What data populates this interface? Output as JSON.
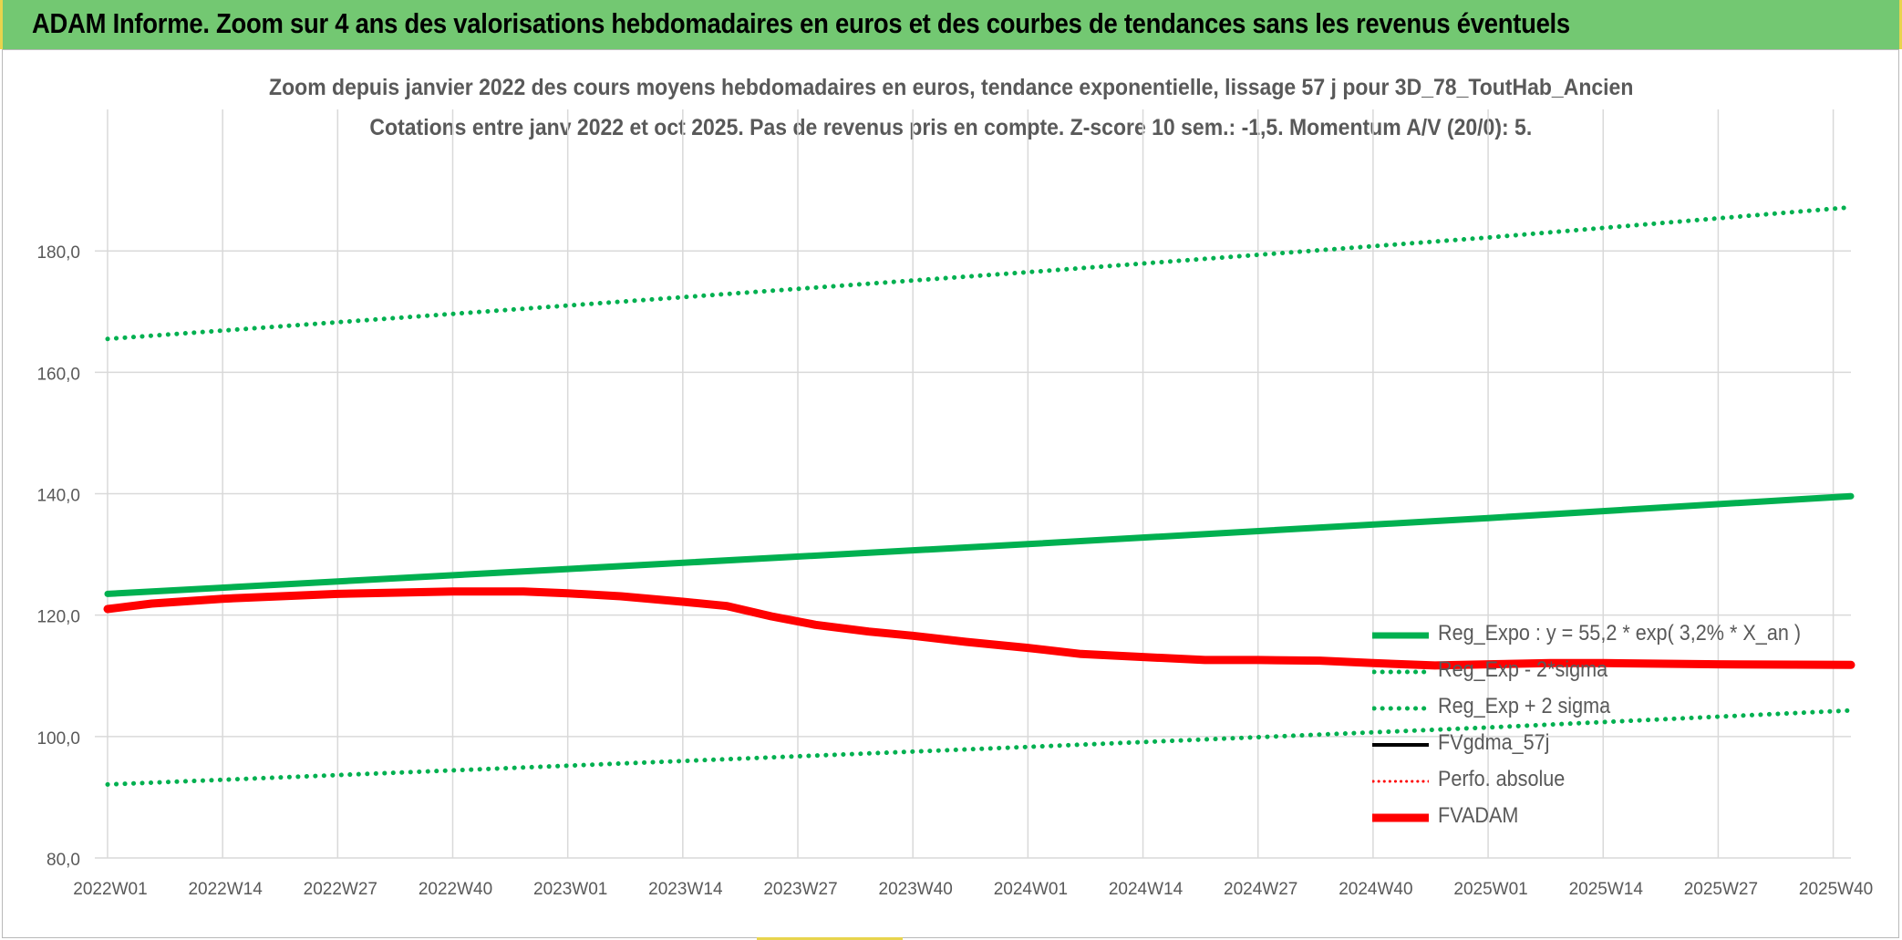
{
  "banner": {
    "title": "ADAM Informe. Zoom sur 4 ans des valorisations hebdomadaires en euros et des courbes de tendances sans les revenus éventuels"
  },
  "chart_data": {
    "type": "line",
    "title": "Zoom depuis janvier 2022 des cours moyens hebdomadaires en euros, tendance exponentielle, lissage 57 j pour 3D_78_ToutHab_Ancien",
    "subtitle": "Cotations entre janv 2022 et oct 2025. Pas de revenus pris en compte. Z-score 10 sem.: -1,5. Momentum A/V (20/0): 5.",
    "xlabel": "",
    "ylabel": "",
    "ylim": [
      80,
      190
    ],
    "xlim": [
      0,
      197
    ],
    "grid": true,
    "legend_position": "bottom-right",
    "x_ticks": [
      {
        "pos": 0,
        "label": "2022W01"
      },
      {
        "pos": 13,
        "label": "2022W14"
      },
      {
        "pos": 26,
        "label": "2022W27"
      },
      {
        "pos": 39,
        "label": "2022W40"
      },
      {
        "pos": 52,
        "label": "2023W01"
      },
      {
        "pos": 65,
        "label": "2023W14"
      },
      {
        "pos": 78,
        "label": "2023W27"
      },
      {
        "pos": 91,
        "label": "2023W40"
      },
      {
        "pos": 104,
        "label": "2024W01"
      },
      {
        "pos": 117,
        "label": "2024W14"
      },
      {
        "pos": 130,
        "label": "2024W27"
      },
      {
        "pos": 143,
        "label": "2024W40"
      },
      {
        "pos": 156,
        "label": "2025W01"
      },
      {
        "pos": 169,
        "label": "2025W14"
      },
      {
        "pos": 182,
        "label": "2025W27"
      },
      {
        "pos": 195,
        "label": "2025W40"
      }
    ],
    "y_ticks": [
      "80,0",
      "100,0",
      "120,0",
      "140,0",
      "160,0",
      "180,0"
    ],
    "y_tick_values": [
      80,
      100,
      120,
      140,
      160,
      180
    ],
    "series": [
      {
        "name": "Reg_Expo : y = 55,2 * exp( 3,2% * X_an )",
        "color": "#00b050",
        "style": "solid-thick",
        "points": [
          [
            0,
            123.5
          ],
          [
            52,
            127.6
          ],
          [
            104,
            131.7
          ],
          [
            156,
            136.0
          ],
          [
            197,
            139.6
          ]
        ]
      },
      {
        "name": "Reg_Exp - 2*sigma",
        "color": "#00b050",
        "style": "dotted",
        "points": [
          [
            0,
            92.1
          ],
          [
            52,
            95.2
          ],
          [
            104,
            98.3
          ],
          [
            156,
            101.5
          ],
          [
            197,
            104.3
          ]
        ]
      },
      {
        "name": "Reg_Exp + 2 sigma",
        "color": "#00b050",
        "style": "dotted",
        "points": [
          [
            0,
            165.5
          ],
          [
            52,
            171.0
          ],
          [
            104,
            176.5
          ],
          [
            156,
            182.2
          ],
          [
            197,
            187.2
          ]
        ]
      },
      {
        "name": "FVgdma_57j",
        "color": "#000000",
        "style": "solid",
        "points": [
          [
            0,
            121.0
          ],
          [
            5,
            122.0
          ],
          [
            13,
            122.7
          ],
          [
            26,
            123.5
          ],
          [
            39,
            123.9
          ],
          [
            47,
            123.8
          ],
          [
            52,
            123.5
          ],
          [
            58,
            122.9
          ],
          [
            65,
            122.1
          ],
          [
            70,
            121.3
          ],
          [
            75,
            119.8
          ],
          [
            80,
            118.5
          ],
          [
            86,
            117.4
          ],
          [
            91,
            116.7
          ],
          [
            97,
            115.8
          ],
          [
            104,
            114.6
          ],
          [
            110,
            113.7
          ],
          [
            117,
            113.1
          ],
          [
            124,
            112.7
          ],
          [
            130,
            112.6
          ],
          [
            137,
            112.6
          ],
          [
            143,
            112.0
          ],
          [
            150,
            111.6
          ],
          [
            156,
            111.8
          ],
          [
            163,
            112.0
          ],
          [
            169,
            112.0
          ],
          [
            182,
            111.9
          ],
          [
            197,
            111.8
          ]
        ]
      },
      {
        "name": "Perfo. absolue",
        "color": "#ff0000",
        "style": "dotted",
        "points": []
      },
      {
        "name": "FVADAM",
        "color": "#ff0000",
        "style": "solid-thick",
        "points": [
          [
            0,
            121.0
          ],
          [
            5,
            121.9
          ],
          [
            13,
            122.7
          ],
          [
            26,
            123.5
          ],
          [
            39,
            123.9
          ],
          [
            47,
            123.9
          ],
          [
            52,
            123.6
          ],
          [
            58,
            123.1
          ],
          [
            65,
            122.2
          ],
          [
            70,
            121.5
          ],
          [
            75,
            119.8
          ],
          [
            80,
            118.4
          ],
          [
            86,
            117.3
          ],
          [
            91,
            116.6
          ],
          [
            97,
            115.6
          ],
          [
            104,
            114.6
          ],
          [
            110,
            113.6
          ],
          [
            117,
            113.1
          ],
          [
            124,
            112.6
          ],
          [
            130,
            112.6
          ],
          [
            137,
            112.5
          ],
          [
            143,
            112.1
          ],
          [
            150,
            111.7
          ],
          [
            156,
            111.9
          ],
          [
            163,
            112.1
          ],
          [
            169,
            112.1
          ],
          [
            182,
            111.9
          ],
          [
            197,
            111.8
          ]
        ]
      }
    ]
  }
}
